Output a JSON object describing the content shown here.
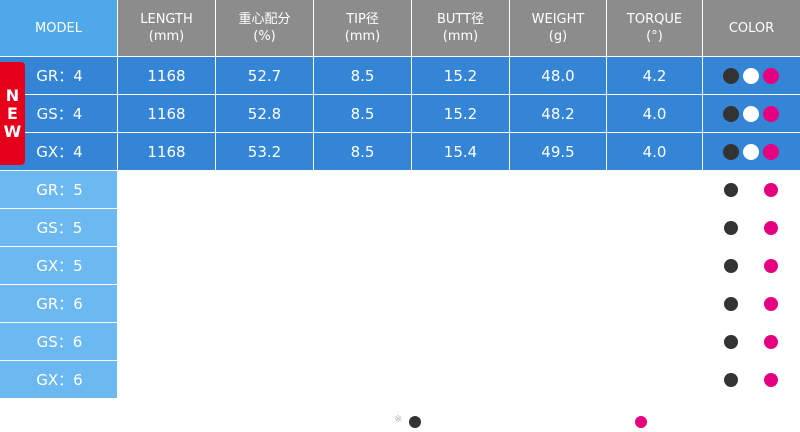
{
  "table": {
    "headers": [
      {
        "label": "MODEL"
      },
      {
        "label": "LENGTH",
        "unit": "(mm)"
      },
      {
        "label": "重心配分",
        "unit": "(%)"
      },
      {
        "label": "TIP径",
        "unit": "(mm)"
      },
      {
        "label": "BUTT径",
        "unit": "(mm)"
      },
      {
        "label": "WEIGHT",
        "unit": "(g)"
      },
      {
        "label": "TORQUE",
        "unit": "(°)"
      },
      {
        "label": "COLOR"
      }
    ],
    "badge": "NEW",
    "rows": [
      {
        "model": "GR：4",
        "values": [
          "1168",
          "52.7",
          "8.5",
          "15.2",
          "48.0",
          "4.2"
        ],
        "colors": [
          "#333333",
          "#ffffff",
          "#e4007f"
        ],
        "new": true
      },
      {
        "model": "GS：4",
        "values": [
          "1168",
          "52.8",
          "8.5",
          "15.2",
          "48.2",
          "4.0"
        ],
        "colors": [
          "#333333",
          "#ffffff",
          "#e4007f"
        ],
        "new": true
      },
      {
        "model": "GX：4",
        "values": [
          "1168",
          "53.2",
          "8.5",
          "15.4",
          "49.5",
          "4.0"
        ],
        "colors": [
          "#333333",
          "#ffffff",
          "#e4007f"
        ],
        "new": true
      },
      {
        "model": "GR：5",
        "colors": [
          "#333333",
          "#e4007f"
        ]
      },
      {
        "model": "GS：5",
        "colors": [
          "#333333",
          "#e4007f"
        ]
      },
      {
        "model": "GX：5",
        "colors": [
          "#333333",
          "#e4007f"
        ]
      },
      {
        "model": "GR：6",
        "colors": [
          "#333333",
          "#e4007f"
        ]
      },
      {
        "model": "GS：6",
        "colors": [
          "#333333",
          "#e4007f"
        ]
      },
      {
        "model": "GX：6",
        "colors": [
          "#333333",
          "#e4007f"
        ]
      }
    ],
    "footer": {
      "note": "※",
      "colors": [
        "#333333",
        "#e4007f"
      ]
    }
  }
}
